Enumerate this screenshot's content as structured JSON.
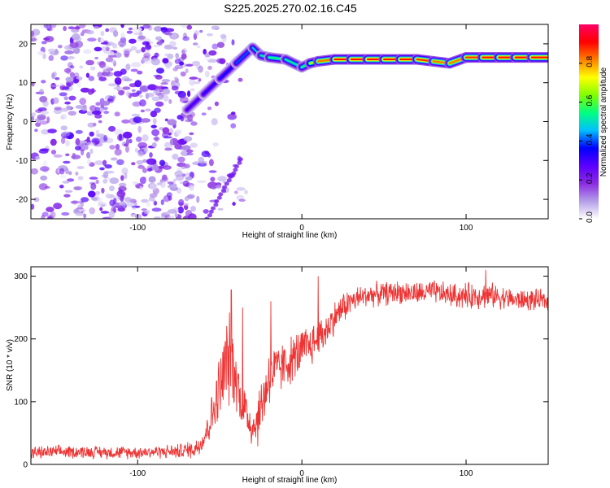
{
  "title": "S225.2025.270.02.16.C45",
  "chart_data": [
    {
      "type": "heatmap",
      "name": "spectrogram",
      "xlabel": "Height of straight line (km)",
      "ylabel": "Frequency (Hz)",
      "xlim": [
        -165,
        150
      ],
      "ylim": [
        -25,
        25
      ],
      "xticks": [
        -100,
        0,
        100
      ],
      "yticks": [
        -20,
        -10,
        0,
        10,
        20
      ],
      "colorbar": {
        "label": "Normalized spectral amplitude",
        "range": [
          0,
          1
        ],
        "ticks": [
          0.0,
          0.2,
          0.4,
          0.6,
          0.8
        ],
        "colors": [
          "#ffffff",
          "#b39ee8",
          "#8a2be2",
          "#5b00ff",
          "#0000ff",
          "#00bfff",
          "#00ff80",
          "#80ff00",
          "#ffff00",
          "#ff8000",
          "#ff0000",
          "#ff0066"
        ]
      },
      "ridge": {
        "x": [
          -70,
          -60,
          -50,
          -40,
          -30,
          -25,
          -20,
          -10,
          0,
          5,
          10,
          20,
          30,
          40,
          50,
          60,
          70,
          80,
          90,
          100,
          110,
          120,
          130,
          140,
          150
        ],
        "freq": [
          3,
          7,
          11,
          15,
          19,
          17,
          16.5,
          16,
          14,
          15,
          15.5,
          16,
          16,
          16,
          16,
          16,
          16,
          15.5,
          15,
          16.5,
          16.5,
          16.5,
          16.5,
          16.5,
          16.5
        ],
        "amplitude": [
          0.3,
          0.3,
          0.35,
          0.35,
          0.45,
          0.5,
          0.55,
          0.55,
          0.5,
          0.6,
          0.75,
          0.9,
          0.9,
          0.9,
          0.9,
          0.9,
          0.9,
          0.85,
          0.8,
          0.85,
          0.9,
          0.9,
          0.9,
          0.9,
          0.9
        ]
      },
      "noise_region_x": [
        -165,
        -40
      ],
      "noise_amplitude": [
        0.05,
        0.3
      ]
    },
    {
      "type": "line",
      "name": "snr",
      "xlabel": "Height of straight line (km)",
      "ylabel": "SNR (10 * v/v)",
      "xlim": [
        -165,
        150
      ],
      "ylim": [
        0,
        315
      ],
      "xticks": [
        -100,
        0,
        100
      ],
      "yticks": [
        0,
        100,
        200,
        300
      ],
      "color": "#ee3333",
      "x": [
        -165,
        -150,
        -130,
        -110,
        -90,
        -75,
        -65,
        -60,
        -55,
        -50,
        -47,
        -45,
        -43,
        -40,
        -38,
        -35,
        -32,
        -30,
        -27,
        -25,
        -22,
        -20,
        -15,
        -10,
        -5,
        0,
        5,
        10,
        15,
        20,
        25,
        30,
        40,
        50,
        60,
        70,
        80,
        90,
        100,
        110,
        120,
        130,
        140,
        150
      ],
      "y": [
        18,
        20,
        20,
        19,
        20,
        21,
        25,
        40,
        75,
        120,
        150,
        170,
        160,
        140,
        110,
        90,
        70,
        60,
        70,
        90,
        120,
        140,
        150,
        160,
        170,
        180,
        190,
        200,
        215,
        235,
        250,
        260,
        270,
        272,
        275,
        272,
        275,
        270,
        268,
        270,
        268,
        262,
        262,
        260
      ],
      "noise_amp": [
        12,
        12,
        12,
        12,
        12,
        14,
        18,
        25,
        40,
        70,
        90,
        90,
        80,
        60,
        50,
        50,
        45,
        40,
        50,
        55,
        60,
        60,
        50,
        45,
        45,
        45,
        40,
        40,
        35,
        30,
        30,
        25,
        22,
        22,
        22,
        22,
        22,
        22,
        25,
        25,
        22,
        20,
        20,
        20
      ],
      "spikes": [
        {
          "x": -43,
          "y": 278
        },
        {
          "x": -36,
          "y": 250
        },
        {
          "x": -19,
          "y": 260
        },
        {
          "x": 10,
          "y": 300
        },
        {
          "x": 112,
          "y": 310
        }
      ]
    }
  ]
}
